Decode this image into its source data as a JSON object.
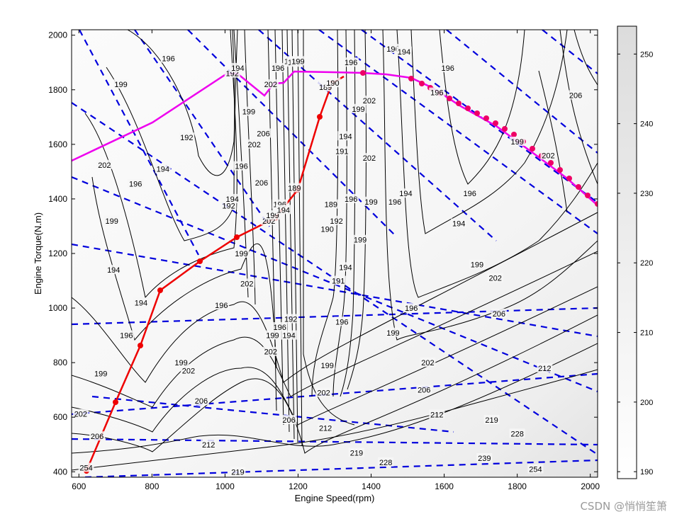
{
  "chart_data": {
    "type": "contour",
    "xlabel": "Engine Speed(rpm)",
    "ylabel": "Engine Torque(N.m)",
    "xlim": [
      580,
      2020
    ],
    "ylim": [
      380,
      2020
    ],
    "xticks": [
      600,
      800,
      1000,
      1200,
      1400,
      1600,
      1800,
      2000
    ],
    "yticks": [
      400,
      600,
      800,
      1000,
      1200,
      1400,
      1600,
      1800,
      2000
    ],
    "colorbar": {
      "ticks": [
        190,
        200,
        210,
        220,
        230,
        240,
        250
      ],
      "range": [
        189,
        254
      ],
      "colors": [
        "#ffffff",
        "#dcdcdc"
      ]
    },
    "colors": {
      "red_line": "#ee0000",
      "magenta_line": "#ee00ee",
      "dashed": "#0000dd",
      "contour": "#000000"
    },
    "contour_labels": [
      {
        "x": 620,
        "y": 415,
        "text": "254"
      },
      {
        "x": 650,
        "y": 530,
        "text": "206"
      },
      {
        "x": 605,
        "y": 612,
        "text": "202"
      },
      {
        "x": 660,
        "y": 760,
        "text": "199"
      },
      {
        "x": 730,
        "y": 900,
        "text": "196"
      },
      {
        "x": 770,
        "y": 1020,
        "text": "194"
      },
      {
        "x": 690,
        "y": 1320,
        "text": "199"
      },
      {
        "x": 670,
        "y": 1525,
        "text": "202"
      },
      {
        "x": 755,
        "y": 1455,
        "text": "196"
      },
      {
        "x": 830,
        "y": 1510,
        "text": "194"
      },
      {
        "x": 895,
        "y": 1625,
        "text": "192"
      },
      {
        "x": 715,
        "y": 1820,
        "text": "199"
      },
      {
        "x": 845,
        "y": 1915,
        "text": "196"
      },
      {
        "x": 695,
        "y": 1140,
        "text": "194"
      },
      {
        "x": 880,
        "y": 800,
        "text": "199"
      },
      {
        "x": 900,
        "y": 770,
        "text": "202"
      },
      {
        "x": 935,
        "y": 660,
        "text": "206"
      },
      {
        "x": 955,
        "y": 500,
        "text": "212"
      },
      {
        "x": 1035,
        "y": 400,
        "text": "219"
      },
      {
        "x": 1010,
        "y": 1375,
        "text": "192"
      },
      {
        "x": 1020,
        "y": 1400,
        "text": "194"
      },
      {
        "x": 990,
        "y": 1010,
        "text": "196"
      },
      {
        "x": 1045,
        "y": 1200,
        "text": "199"
      },
      {
        "x": 1060,
        "y": 1090,
        "text": "202"
      },
      {
        "x": 1045,
        "y": 1520,
        "text": "196"
      },
      {
        "x": 1065,
        "y": 1720,
        "text": "199"
      },
      {
        "x": 1080,
        "y": 1600,
        "text": "202"
      },
      {
        "x": 1105,
        "y": 1640,
        "text": "206"
      },
      {
        "x": 1100,
        "y": 1460,
        "text": "206"
      },
      {
        "x": 1020,
        "y": 1860,
        "text": "192"
      },
      {
        "x": 1035,
        "y": 1880,
        "text": "194"
      },
      {
        "x": 1125,
        "y": 1820,
        "text": "202"
      },
      {
        "x": 1145,
        "y": 1880,
        "text": "196"
      },
      {
        "x": 1120,
        "y": 1320,
        "text": "202"
      },
      {
        "x": 1130,
        "y": 1340,
        "text": "199"
      },
      {
        "x": 1150,
        "y": 1380,
        "text": "196"
      },
      {
        "x": 1160,
        "y": 1360,
        "text": "194"
      },
      {
        "x": 1180,
        "y": 1905,
        "text": "194"
      },
      {
        "x": 1190,
        "y": 1900,
        "text": "196"
      },
      {
        "x": 1200,
        "y": 1905,
        "text": "199"
      },
      {
        "x": 1190,
        "y": 1440,
        "text": "189"
      },
      {
        "x": 1125,
        "y": 840,
        "text": "202"
      },
      {
        "x": 1130,
        "y": 900,
        "text": "199"
      },
      {
        "x": 1150,
        "y": 930,
        "text": "196"
      },
      {
        "x": 1175,
        "y": 900,
        "text": "194"
      },
      {
        "x": 1180,
        "y": 960,
        "text": "192"
      },
      {
        "x": 1175,
        "y": 590,
        "text": "206"
      },
      {
        "x": 1275,
        "y": 1810,
        "text": "189"
      },
      {
        "x": 1295,
        "y": 1825,
        "text": "190"
      },
      {
        "x": 1290,
        "y": 1380,
        "text": "189"
      },
      {
        "x": 1280,
        "y": 1290,
        "text": "190"
      },
      {
        "x": 1305,
        "y": 1320,
        "text": "192"
      },
      {
        "x": 1310,
        "y": 1100,
        "text": "191"
      },
      {
        "x": 1320,
        "y": 1575,
        "text": "191"
      },
      {
        "x": 1330,
        "y": 1630,
        "text": "194"
      },
      {
        "x": 1345,
        "y": 1900,
        "text": "196"
      },
      {
        "x": 1345,
        "y": 1400,
        "text": "196"
      },
      {
        "x": 1330,
        "y": 1150,
        "text": "194"
      },
      {
        "x": 1320,
        "y": 950,
        "text": "196"
      },
      {
        "x": 1280,
        "y": 790,
        "text": "199"
      },
      {
        "x": 1270,
        "y": 690,
        "text": "202"
      },
      {
        "x": 1275,
        "y": 560,
        "text": "212"
      },
      {
        "x": 1360,
        "y": 470,
        "text": "219"
      },
      {
        "x": 1365,
        "y": 1730,
        "text": "199"
      },
      {
        "x": 1395,
        "y": 1760,
        "text": "202"
      },
      {
        "x": 1395,
        "y": 1550,
        "text": "202"
      },
      {
        "x": 1370,
        "y": 1250,
        "text": "199"
      },
      {
        "x": 1400,
        "y": 1390,
        "text": "199"
      },
      {
        "x": 1460,
        "y": 1950,
        "text": "196"
      },
      {
        "x": 1465,
        "y": 1390,
        "text": "196"
      },
      {
        "x": 1490,
        "y": 1940,
        "text": "194"
      },
      {
        "x": 1495,
        "y": 1420,
        "text": "194"
      },
      {
        "x": 1460,
        "y": 910,
        "text": "199"
      },
      {
        "x": 1510,
        "y": 1000,
        "text": "196"
      },
      {
        "x": 1555,
        "y": 800,
        "text": "202"
      },
      {
        "x": 1545,
        "y": 700,
        "text": "206"
      },
      {
        "x": 1580,
        "y": 610,
        "text": "212"
      },
      {
        "x": 1440,
        "y": 435,
        "text": "228"
      },
      {
        "x": 1580,
        "y": 1790,
        "text": "196"
      },
      {
        "x": 1610,
        "y": 1880,
        "text": "196"
      },
      {
        "x": 1640,
        "y": 1310,
        "text": "194"
      },
      {
        "x": 1670,
        "y": 1420,
        "text": "196"
      },
      {
        "x": 1690,
        "y": 1160,
        "text": "199"
      },
      {
        "x": 1740,
        "y": 1110,
        "text": "202"
      },
      {
        "x": 1750,
        "y": 980,
        "text": "206"
      },
      {
        "x": 1730,
        "y": 590,
        "text": "219"
      },
      {
        "x": 1710,
        "y": 450,
        "text": "239"
      },
      {
        "x": 1800,
        "y": 540,
        "text": "228"
      },
      {
        "x": 1850,
        "y": 410,
        "text": "254"
      },
      {
        "x": 1875,
        "y": 780,
        "text": "212"
      },
      {
        "x": 1800,
        "y": 1610,
        "text": "199"
      },
      {
        "x": 1885,
        "y": 1560,
        "text": "202"
      },
      {
        "x": 1960,
        "y": 1780,
        "text": "206"
      }
    ]
  },
  "watermark": "CSDN @悄悄笙箫"
}
